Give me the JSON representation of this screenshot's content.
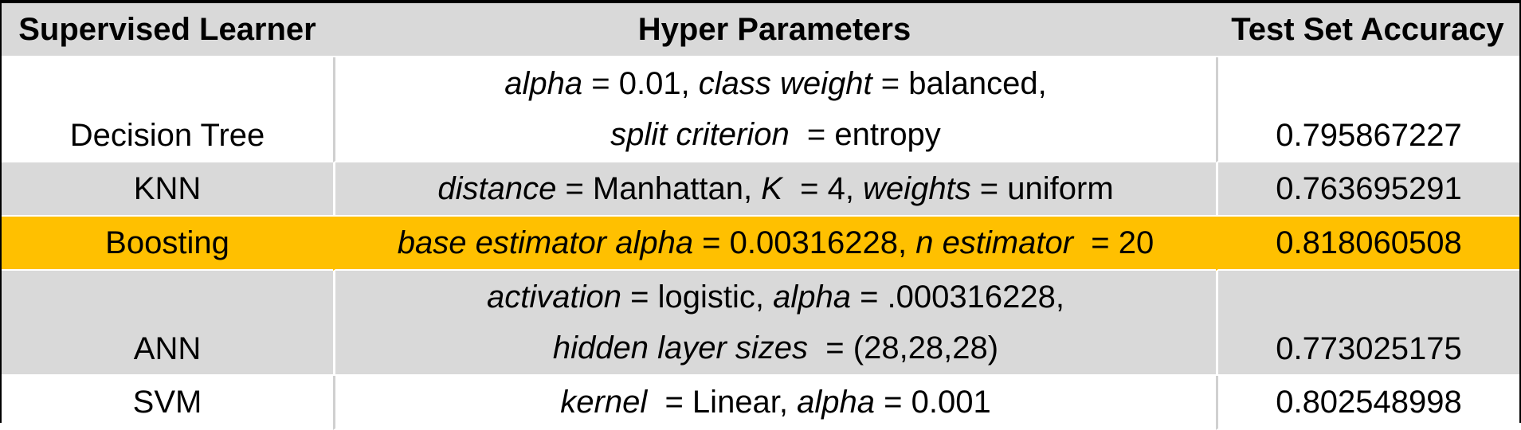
{
  "headers": [
    "Supervised Learner",
    "Hyper Parameters",
    "Test Set Accuracy"
  ],
  "colors": {
    "header_bg": "#d9d9d9",
    "alt_row_bg": "#d9d9d9",
    "highlight_bg": "#ffc000",
    "border": "#000000"
  },
  "rows": [
    {
      "learner": "Decision Tree",
      "params_line1": [
        {
          "k": "alpha",
          "v": " = 0.01, "
        },
        {
          "k": "class weight",
          "v": " = balanced,"
        }
      ],
      "params_line2": [
        {
          "k": "split criterion",
          "v": "  = entropy"
        }
      ],
      "accuracy": "0.795867227"
    },
    {
      "learner": "KNN",
      "params_line1": [
        {
          "k": "distance",
          "v": " = Manhattan, "
        },
        {
          "k": "K",
          "v": "  = 4, "
        },
        {
          "k": "weights",
          "v": " = uniform"
        }
      ],
      "accuracy": "0.763695291"
    },
    {
      "learner": "Boosting",
      "params_line1": [
        {
          "k": "base estimator alpha",
          "v": " = 0.00316228, "
        },
        {
          "k": "n estimator",
          "v": "  = 20"
        }
      ],
      "accuracy": "0.818060508"
    },
    {
      "learner": "ANN",
      "params_line1": [
        {
          "k": "activation",
          "v": " = logistic, "
        },
        {
          "k": "alpha",
          "v": " = .000316228,"
        }
      ],
      "params_line2": [
        {
          "k": "hidden layer sizes",
          "v": "  = (28,28,28)"
        }
      ],
      "accuracy": "0.773025175"
    },
    {
      "learner": "SVM",
      "params_line1": [
        {
          "k": "kernel",
          "v": "  = Linear, "
        },
        {
          "k": "alpha",
          "v": " = 0.001"
        }
      ],
      "accuracy": "0.802548998"
    }
  ]
}
